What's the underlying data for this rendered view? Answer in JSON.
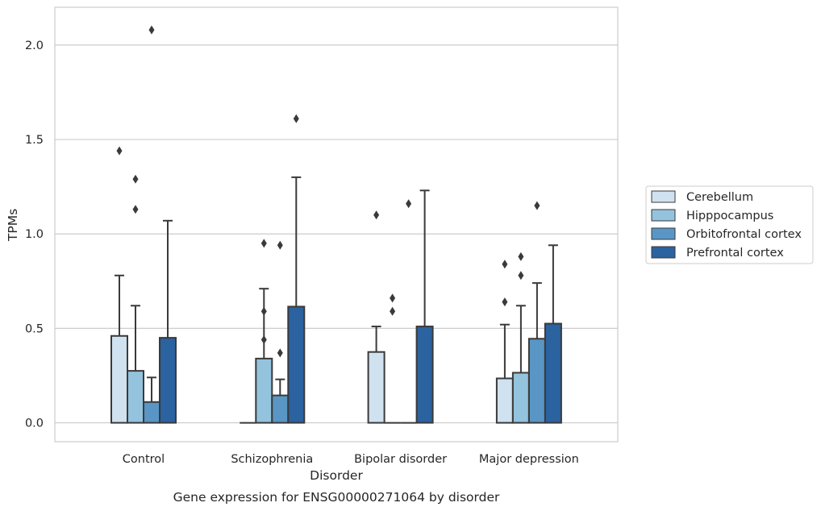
{
  "chart_data": {
    "type": "bar",
    "title": "Gene expression for ENSG00000271064 by disorder",
    "xlabel": "Disorder",
    "ylabel": "TPMs",
    "ylim": [
      -0.1,
      2.2
    ],
    "yticks": [
      0.0,
      0.5,
      1.0,
      1.5,
      2.0
    ],
    "ytick_labels": [
      "0.0",
      "0.5",
      "1.0",
      "1.5",
      "2.0"
    ],
    "grid": "horizontal",
    "legend_position": "right",
    "categories": [
      "Control",
      "Schizophrenia",
      "Bipolar disorder",
      "Major depression"
    ],
    "series": [
      {
        "name": "Cerebellum",
        "color": "#d0e1f0",
        "values": [
          0.46,
          0.0,
          0.375,
          0.235
        ],
        "error_upper": [
          0.78,
          null,
          0.51,
          0.52
        ],
        "outliers": [
          [
            1.44
          ],
          [],
          [
            1.1
          ],
          [
            0.64,
            0.84
          ]
        ]
      },
      {
        "name": "Hipppocampus",
        "color": "#94c3dd",
        "values": [
          0.275,
          0.34,
          0.0,
          0.265
        ],
        "error_upper": [
          0.62,
          0.71,
          null,
          0.62
        ],
        "outliers": [
          [
            1.13,
            1.29
          ],
          [
            0.44,
            0.59,
            0.95
          ],
          [
            0.59,
            0.66
          ],
          [
            0.78,
            0.88
          ]
        ]
      },
      {
        "name": "Orbitofrontal cortex",
        "color": "#5996c5",
        "values": [
          0.11,
          0.145,
          0.0,
          0.445
        ],
        "error_upper": [
          0.24,
          0.23,
          null,
          0.74
        ],
        "outliers": [
          [
            2.08
          ],
          [
            0.37,
            0.94
          ],
          [
            1.16
          ],
          [
            1.15
          ]
        ]
      },
      {
        "name": "Prefrontal cortex",
        "color": "#2b62a0",
        "values": [
          0.45,
          0.615,
          0.51,
          0.525
        ],
        "error_upper": [
          1.07,
          1.3,
          1.23,
          0.94
        ],
        "outliers": [
          [],
          [
            1.61
          ],
          [],
          []
        ]
      }
    ]
  }
}
